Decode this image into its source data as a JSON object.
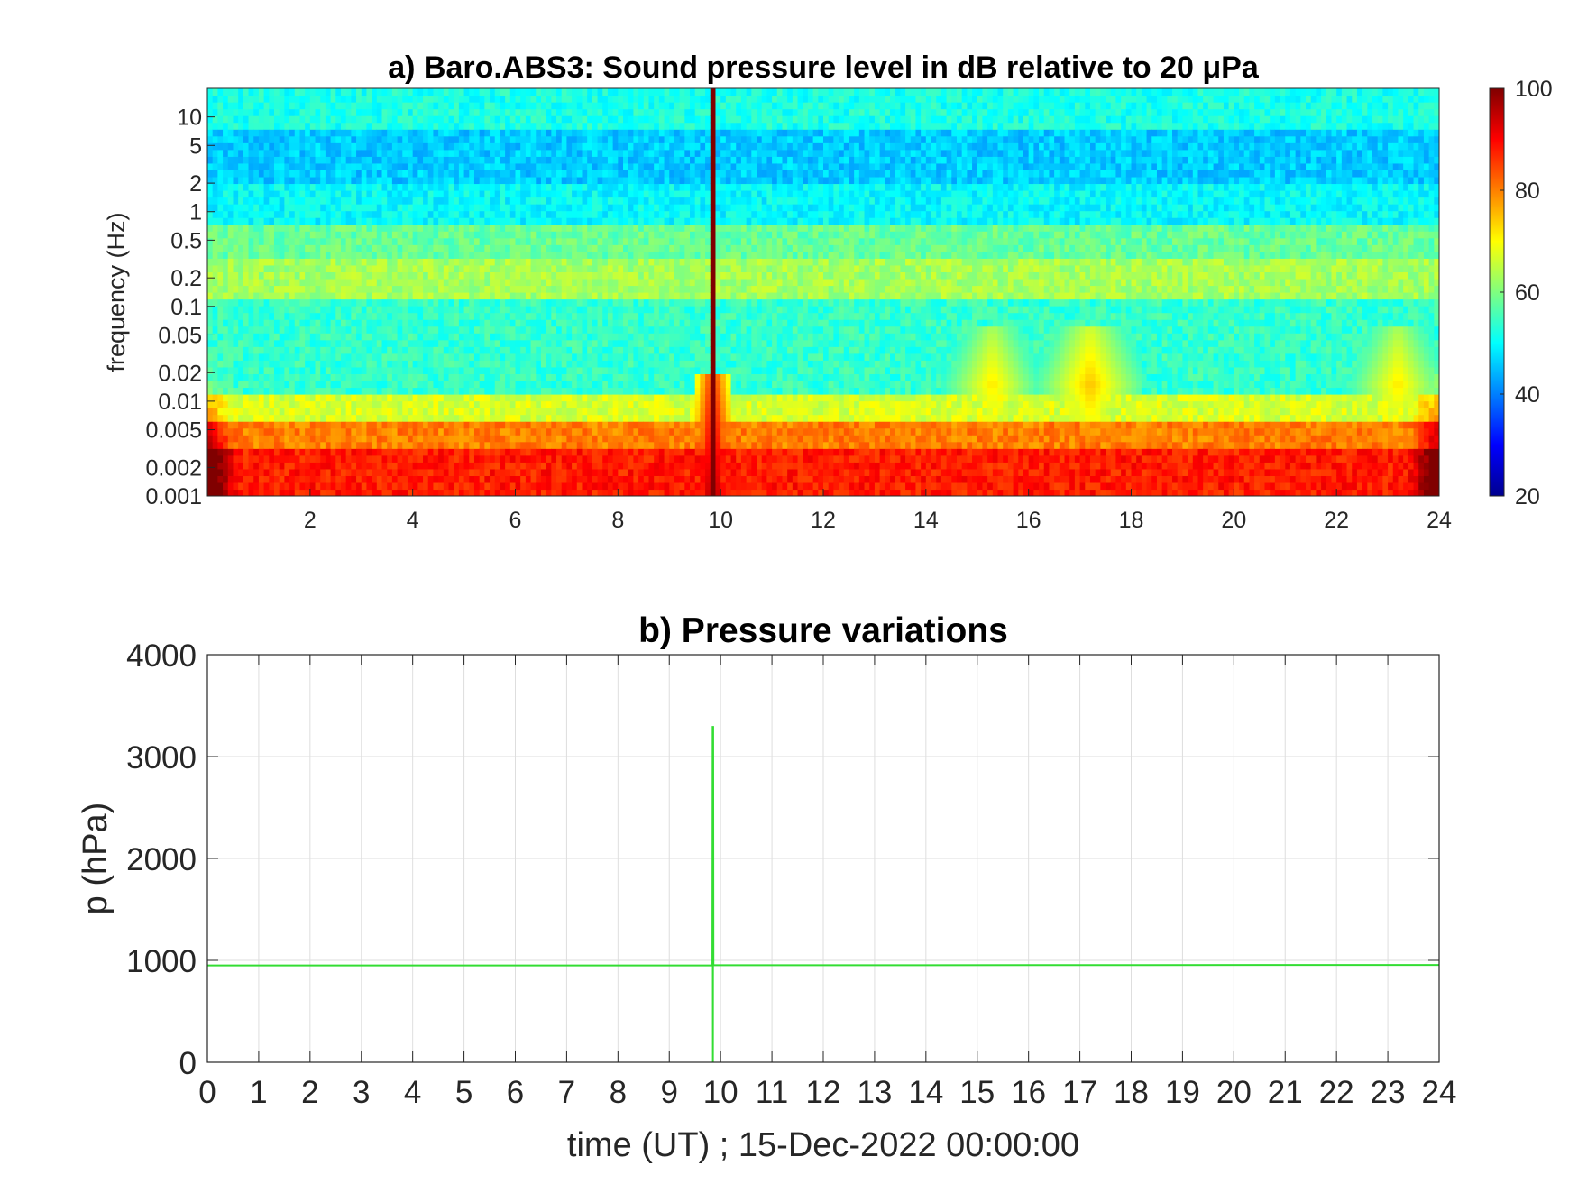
{
  "chart_data": [
    {
      "type": "heatmap",
      "title": "a) Baro.ABS3: Sound pressure level in dB relative to 20 μPa",
      "xlabel": "",
      "ylabel": "frequency (Hz)",
      "xlim": [
        0,
        24
      ],
      "x_ticks": [
        2,
        4,
        6,
        8,
        10,
        12,
        14,
        16,
        18,
        20,
        22,
        24
      ],
      "x_tick_labels": [
        "2",
        "4",
        "6",
        "8",
        "10",
        "12",
        "14",
        "16",
        "18",
        "20",
        "22",
        "24"
      ],
      "y_scale": "log",
      "ylim": [
        0.001,
        20
      ],
      "y_ticks": [
        0.001,
        0.002,
        0.005,
        0.01,
        0.02,
        0.05,
        0.1,
        0.2,
        0.5,
        1,
        2,
        5,
        10
      ],
      "y_tick_labels": [
        "0.001",
        "0.002",
        "0.005",
        "0.01",
        "0.02",
        "0.05",
        "0.1",
        "0.2",
        "0.5",
        "1",
        "2",
        "5",
        "10"
      ],
      "colorbar": {
        "colormap": "jet",
        "range": [
          20,
          100
        ],
        "ticks": [
          20,
          40,
          60,
          80,
          100
        ],
        "tick_labels": [
          "20",
          "40",
          "60",
          "80",
          "100"
        ]
      },
      "frequency_band_levels_db": [
        {
          "freq_range": [
            0.001,
            0.003
          ],
          "level": 88
        },
        {
          "freq_range": [
            0.003,
            0.006
          ],
          "level": 80
        },
        {
          "freq_range": [
            0.006,
            0.012
          ],
          "level": 67
        },
        {
          "freq_range": [
            0.012,
            0.12
          ],
          "level": 54
        },
        {
          "freq_range": [
            0.12,
            0.3
          ],
          "level": 63
        },
        {
          "freq_range": [
            0.3,
            0.7
          ],
          "level": 58
        },
        {
          "freq_range": [
            0.7,
            2
          ],
          "level": 50
        },
        {
          "freq_range": [
            2,
            7
          ],
          "level": 46
        },
        {
          "freq_range": [
            7,
            20
          ],
          "level": 52
        }
      ],
      "events": [
        {
          "time": 9.85,
          "type": "broadband_spike",
          "level": 100
        },
        {
          "time": 17.2,
          "type": "low_frequency_enhancement",
          "level": 75
        },
        {
          "time": 15.3,
          "type": "low_frequency_enhancement",
          "level": 72
        },
        {
          "time": 23.2,
          "type": "low_frequency_enhancement",
          "level": 72
        }
      ]
    },
    {
      "type": "line",
      "title": "b) Pressure variations",
      "xlabel": "time (UT) ; 15-Dec-2022 00:00:00",
      "ylabel": "p (hPa)",
      "xlim": [
        0,
        24
      ],
      "ylim": [
        0,
        4000
      ],
      "grid": true,
      "x_ticks": [
        0,
        1,
        2,
        3,
        4,
        5,
        6,
        7,
        8,
        9,
        10,
        11,
        12,
        13,
        14,
        15,
        16,
        17,
        18,
        19,
        20,
        21,
        22,
        23,
        24
      ],
      "x_tick_labels": [
        "0",
        "1",
        "2",
        "3",
        "4",
        "5",
        "6",
        "7",
        "8",
        "9",
        "10",
        "11",
        "12",
        "13",
        "14",
        "15",
        "16",
        "17",
        "18",
        "19",
        "20",
        "21",
        "22",
        "23",
        "24"
      ],
      "y_ticks": [
        0,
        1000,
        2000,
        3000,
        4000
      ],
      "y_tick_labels": [
        "0",
        "1000",
        "2000",
        "3000",
        "4000"
      ],
      "series": [
        {
          "color": "#33dd33",
          "x": [
            0,
            9.84,
            9.845,
            9.85,
            9.855,
            9.86,
            24
          ],
          "y": [
            950,
            950,
            3300,
            0,
            3300,
            952,
            955
          ]
        }
      ]
    }
  ]
}
